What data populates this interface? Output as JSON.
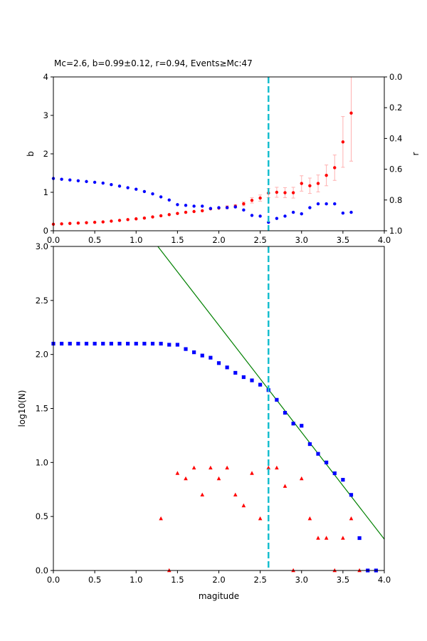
{
  "chart_data": [
    {
      "type": "scatter",
      "title": "Mc=2.6, b=0.99±0.12, r=0.94, Events≥Mc:47",
      "xlabel": "",
      "ylabel": "b",
      "ylabel_right": "r",
      "xlim": [
        0,
        4
      ],
      "ylim": [
        0,
        4
      ],
      "ylim_right": [
        1,
        0
      ],
      "x_ticks": [
        "0.0",
        "0.5",
        "1.0",
        "1.5",
        "2.0",
        "2.5",
        "3.0",
        "3.5",
        "4.0"
      ],
      "y_ticks": [
        "0",
        "1",
        "2",
        "3",
        "4"
      ],
      "y_ticks_right": [
        "0.0",
        "0.2",
        "0.4",
        "0.6",
        "0.8",
        "1.0"
      ],
      "grid": false,
      "mc_line_x": 2.6,
      "colors": {
        "b": "#ff0000",
        "r": "#0000ff",
        "err": "#ffb0b0",
        "mc": "#17becf"
      },
      "series": [
        {
          "axis": "left",
          "x": [
            0.0,
            0.1,
            0.2,
            0.3,
            0.4,
            0.5,
            0.6,
            0.7,
            0.8,
            0.9,
            1.0,
            1.1,
            1.2,
            1.3,
            1.4,
            1.5,
            1.6,
            1.7,
            1.8,
            1.9,
            2.0,
            2.1,
            2.2,
            2.3,
            2.4,
            2.5,
            2.6,
            2.7,
            2.8,
            2.9,
            3.0,
            3.1,
            3.2,
            3.3,
            3.4,
            3.5,
            3.6
          ],
          "values": [
            0.17,
            0.18,
            0.19,
            0.2,
            0.21,
            0.22,
            0.23,
            0.25,
            0.27,
            0.29,
            0.31,
            0.33,
            0.36,
            0.39,
            0.42,
            0.45,
            0.48,
            0.5,
            0.52,
            0.57,
            0.59,
            0.61,
            0.64,
            0.7,
            0.79,
            0.85,
            0.98,
            1.0,
            0.99,
            0.99,
            1.23,
            1.17,
            1.23,
            1.44,
            1.64,
            2.31,
            3.06
          ],
          "errors": [
            0.01,
            0.01,
            0.01,
            0.01,
            0.01,
            0.01,
            0.01,
            0.01,
            0.01,
            0.01,
            0.01,
            0.01,
            0.01,
            0.01,
            0.02,
            0.02,
            0.02,
            0.02,
            0.03,
            0.03,
            0.03,
            0.04,
            0.04,
            0.05,
            0.07,
            0.08,
            0.12,
            0.13,
            0.13,
            0.14,
            0.2,
            0.2,
            0.22,
            0.27,
            0.33,
            0.66,
            1.25
          ]
        },
        {
          "axis": "right",
          "x": [
            0.0,
            0.1,
            0.2,
            0.3,
            0.4,
            0.5,
            0.6,
            0.7,
            0.8,
            0.9,
            1.0,
            1.1,
            1.2,
            1.3,
            1.4,
            1.5,
            1.6,
            1.7,
            1.8,
            1.9,
            2.0,
            2.1,
            2.2,
            2.3,
            2.4,
            2.5,
            2.6,
            2.7,
            2.8,
            2.9,
            3.0,
            3.1,
            3.2,
            3.3,
            3.4,
            3.5,
            3.6
          ],
          "values": [
            0.66,
            0.665,
            0.67,
            0.675,
            0.68,
            0.685,
            0.69,
            0.7,
            0.71,
            0.72,
            0.73,
            0.745,
            0.76,
            0.78,
            0.8,
            0.83,
            0.835,
            0.84,
            0.84,
            0.855,
            0.85,
            0.85,
            0.845,
            0.865,
            0.9,
            0.905,
            0.945,
            0.92,
            0.905,
            0.88,
            0.89,
            0.85,
            0.825,
            0.825,
            0.825,
            0.885,
            0.88
          ]
        }
      ]
    },
    {
      "type": "scatter",
      "title": "",
      "xlabel": "magitude",
      "ylabel": "log10(N)",
      "xlim": [
        0,
        4
      ],
      "ylim": [
        0,
        3
      ],
      "x_ticks": [
        "0.0",
        "0.5",
        "1.0",
        "1.5",
        "2.0",
        "2.5",
        "3.0",
        "3.5",
        "4.0"
      ],
      "y_ticks": [
        "0.0",
        "0.5",
        "1.0",
        "1.5",
        "2.0",
        "2.5",
        "3.0"
      ],
      "grid": false,
      "mc_line_x": 2.6,
      "colors": {
        "cumulative": "#0000ff",
        "noncumulative": "#ff0000",
        "fit": "#008000",
        "mc": "#17becf"
      },
      "fit_line": {
        "a": 4.25,
        "b": 0.99
      },
      "series": [
        {
          "marker": "square",
          "x": [
            0.0,
            0.1,
            0.2,
            0.3,
            0.4,
            0.5,
            0.6,
            0.7,
            0.8,
            0.9,
            1.0,
            1.1,
            1.2,
            1.3,
            1.4,
            1.5,
            1.6,
            1.7,
            1.8,
            1.9,
            2.0,
            2.1,
            2.2,
            2.3,
            2.4,
            2.5,
            2.6,
            2.7,
            2.8,
            2.9,
            3.0,
            3.1,
            3.2,
            3.3,
            3.4,
            3.5,
            3.6,
            3.7,
            3.8,
            3.9
          ],
          "values": [
            2.1,
            2.1,
            2.1,
            2.1,
            2.1,
            2.1,
            2.1,
            2.1,
            2.1,
            2.1,
            2.1,
            2.1,
            2.1,
            2.1,
            2.09,
            2.09,
            2.05,
            2.02,
            1.99,
            1.97,
            1.92,
            1.88,
            1.83,
            1.79,
            1.76,
            1.72,
            1.67,
            1.58,
            1.46,
            1.36,
            1.34,
            1.17,
            1.08,
            1.0,
            0.9,
            0.84,
            0.7,
            0.3,
            0.0,
            0.0
          ]
        },
        {
          "marker": "triangle",
          "x": [
            1.3,
            1.4,
            1.5,
            1.6,
            1.7,
            1.8,
            1.9,
            2.0,
            2.1,
            2.2,
            2.3,
            2.4,
            2.5,
            2.6,
            2.7,
            2.8,
            2.9,
            3.0,
            3.1,
            3.2,
            3.3,
            3.4,
            3.5,
            3.6,
            3.7
          ],
          "values": [
            0.48,
            0.0,
            0.9,
            0.85,
            0.95,
            0.7,
            0.95,
            0.85,
            0.95,
            0.7,
            0.6,
            0.9,
            0.48,
            0.95,
            0.95,
            0.78,
            0.0,
            0.85,
            0.48,
            0.3,
            0.3,
            0.0,
            0.3,
            0.48,
            0.0
          ]
        }
      ]
    }
  ]
}
